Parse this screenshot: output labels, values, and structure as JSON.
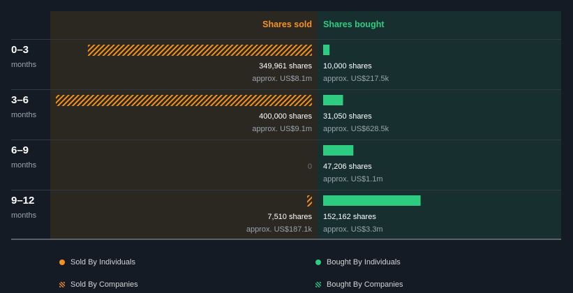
{
  "chart_data": {
    "type": "bar",
    "orientation": "horizontal-diverging",
    "headers": {
      "sold": "Shares sold",
      "bought": "Shares bought"
    },
    "rows": [
      {
        "period": "0–3",
        "unit": "months",
        "sold_shares": 349961,
        "sold_label": "349,961 shares",
        "sold_value": "approx. US$8.1m",
        "bought_shares": 10000,
        "bought_label": "10,000 shares",
        "bought_value": "approx. US$217.5k"
      },
      {
        "period": "3–6",
        "unit": "months",
        "sold_shares": 400000,
        "sold_label": "400,000 shares",
        "sold_value": "approx. US$9.1m",
        "bought_shares": 31050,
        "bought_label": "31,050 shares",
        "bought_value": "approx. US$628.5k"
      },
      {
        "period": "6–9",
        "unit": "months",
        "sold_shares": 0,
        "sold_label": "0",
        "sold_value": "",
        "bought_shares": 47206,
        "bought_label": "47,206 shares",
        "bought_value": "approx. US$1.1m"
      },
      {
        "period": "9–12",
        "unit": "months",
        "sold_shares": 7510,
        "sold_label": "7,510 shares",
        "sold_value": "approx. US$187.1k",
        "bought_shares": 152162,
        "bought_label": "152,162 shares",
        "bought_value": "approx. US$3.3m"
      }
    ],
    "sold_scale_max": 400000,
    "bought_scale_max": 400000,
    "sold_style": "companies-hatched",
    "bought_style": "individuals-solid",
    "legend": [
      {
        "label": "Sold By Individuals",
        "marker": "dot",
        "color": "#f5921e"
      },
      {
        "label": "Bought By Individuals",
        "marker": "dot",
        "color": "#2dcc80"
      },
      {
        "label": "Sold By Companies",
        "marker": "hatch",
        "color": "#f5921e"
      },
      {
        "label": "Bought By Companies",
        "marker": "hatch",
        "color": "#2dcc80"
      }
    ],
    "colors": {
      "sold": "#f5921e",
      "bought": "#2dcc80"
    }
  }
}
